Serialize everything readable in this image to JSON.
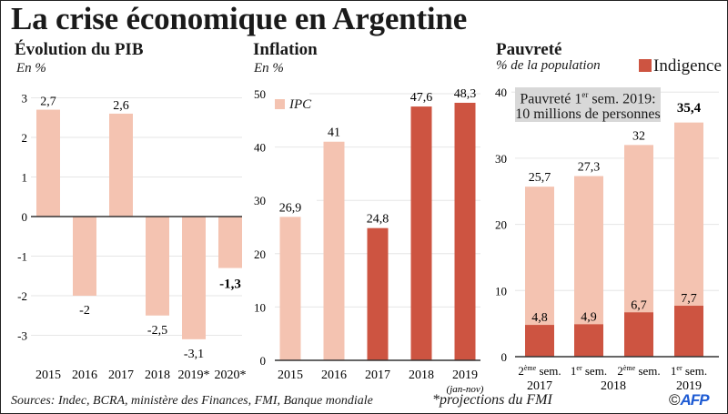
{
  "title": "La crise économique en Argentine",
  "colors": {
    "light": "#f4c3b1",
    "dark": "#cd5441",
    "grid": "#e6e6e6",
    "axis": "#333333",
    "box": "#d8d8d8"
  },
  "pib": {
    "subtitle": "Évolution du PIB",
    "unit": "En %"
  },
  "inflation": {
    "subtitle": "Inflation",
    "unit": "En %",
    "legend": "IPC",
    "note_2019": "(jan-nov)"
  },
  "pauvrete": {
    "subtitle": "Pauvreté",
    "unit": "% de la population",
    "legend": "Indigence",
    "box_line1_pre": "Pauvreté 1",
    "box_line1_sup": "er",
    "box_line1_post": " sem. 2019:",
    "box_line2": "10 millions de personnes"
  },
  "footer": {
    "sources": "Sources: Indec, BCRA, ministère des Finances, FMI, Banque mondiale",
    "projections": "*projections du FMI",
    "copyright": "©",
    "agency": "AFP"
  },
  "chart_data": [
    {
      "type": "bar",
      "title": "Évolution du PIB",
      "ylabel": "En %",
      "categories": [
        "2015",
        "2016",
        "2017",
        "2018",
        "2019*",
        "2020*"
      ],
      "values": [
        2.7,
        -2,
        2.6,
        -2.5,
        -3.1,
        -1.3
      ],
      "labels": [
        "2,7",
        "-2",
        "2,6",
        "-2,5",
        "-3,1",
        "-1,3"
      ],
      "bold_label_index": 5,
      "yticks": [
        3,
        2,
        1,
        0,
        -1,
        -2,
        -3
      ],
      "ylim": [
        -3.4,
        3.1
      ],
      "grid": true
    },
    {
      "type": "bar",
      "title": "Inflation",
      "ylabel": "En %",
      "legend": [
        "IPC"
      ],
      "categories": [
        "2015",
        "2016",
        "2017",
        "2018",
        "2019"
      ],
      "values": [
        26.9,
        41,
        24.8,
        47.6,
        48.3
      ],
      "labels": [
        "26,9",
        "41",
        "24,8",
        "47,6",
        "48,3"
      ],
      "shade": [
        "light",
        "light",
        "dark",
        "dark",
        "dark"
      ],
      "yticks": [
        0,
        10,
        20,
        30,
        40,
        50
      ],
      "ylim": [
        0,
        52
      ],
      "grid": true
    },
    {
      "type": "bar",
      "stacked": true,
      "title": "Pauvreté",
      "ylabel": "% de la population",
      "legend": [
        "Indigence"
      ],
      "categories": [
        {
          "num": "2",
          "sup": "ème",
          "rest": " sem.",
          "year": "2017"
        },
        {
          "num": "1",
          "sup": "er",
          "rest": " sem.",
          "year": ""
        },
        {
          "num": "2",
          "sup": "ème",
          "rest": " sem.",
          "year": "2018"
        },
        {
          "num": "1",
          "sup": "er",
          "rest": " sem.",
          "year": "2019"
        }
      ],
      "series": [
        {
          "name": "Pauvreté",
          "values": [
            25.7,
            27.3,
            32,
            35.4
          ],
          "labels": [
            "25,7",
            "27,3",
            "32",
            "35,4"
          ]
        },
        {
          "name": "Indigence",
          "values": [
            4.8,
            4.9,
            6.7,
            7.7
          ],
          "labels": [
            "4,8",
            "4,9",
            "6,7",
            "7,7"
          ]
        }
      ],
      "bold_label_index": 3,
      "yticks": [
        0,
        10,
        20,
        30,
        40
      ],
      "ylim": [
        0,
        41
      ],
      "grid": true
    }
  ]
}
